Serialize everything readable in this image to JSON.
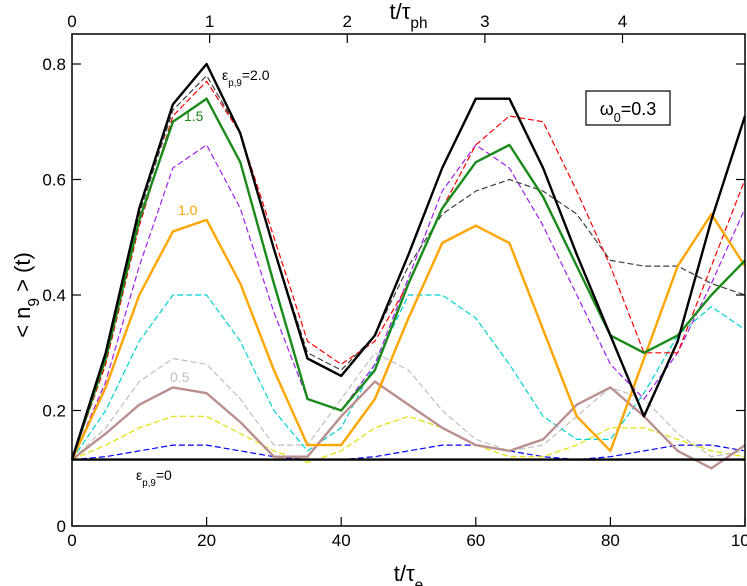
{
  "chart_data": {
    "type": "line",
    "xlabel": [
      "t/τ",
      "e"
    ],
    "x2label": [
      "t/τ",
      "ph"
    ],
    "ylabel": [
      "< n",
      "9",
      " > (t)"
    ],
    "legend_box": [
      "ω",
      "0",
      "=0.3"
    ],
    "annotations": [
      [
        "ε",
        "p,9",
        "=2.0"
      ],
      [
        "1.5"
      ],
      [
        "1.0"
      ],
      [
        "0.5"
      ],
      [
        "ε",
        "p,9",
        "=0"
      ]
    ],
    "x": [
      0,
      5,
      10,
      15,
      20,
      25,
      30,
      35,
      40,
      45,
      50,
      55,
      60,
      65,
      70,
      75,
      80,
      85,
      90,
      95,
      100
    ],
    "xlim": [
      0,
      100
    ],
    "xticks": [
      0,
      20,
      40,
      60,
      80,
      100
    ],
    "x2lim": [
      0,
      4.89
    ],
    "x2ticks": [
      0,
      1,
      2,
      3,
      4
    ],
    "ylim": [
      0,
      0.8
    ],
    "yticks": [
      0,
      0.2,
      0.4,
      0.6,
      0.8
    ],
    "series": [
      {
        "color": "#0000ff",
        "dashed": true,
        "values": [
          0.115,
          0.12,
          0.13,
          0.14,
          0.14,
          0.13,
          0.12,
          0.115,
          0.115,
          0.12,
          0.13,
          0.14,
          0.14,
          0.13,
          0.12,
          0.115,
          0.12,
          0.13,
          0.14,
          0.14,
          0.13
        ]
      },
      {
        "color": "#e0e000",
        "dashed": true,
        "values": [
          0.115,
          0.14,
          0.17,
          0.19,
          0.19,
          0.16,
          0.13,
          0.11,
          0.13,
          0.17,
          0.19,
          0.17,
          0.14,
          0.12,
          0.12,
          0.14,
          0.17,
          0.17,
          0.15,
          0.13,
          0.12
        ]
      },
      {
        "color": "#c0c0c0",
        "dashed": true,
        "values": [
          0.115,
          0.17,
          0.25,
          0.29,
          0.28,
          0.22,
          0.14,
          0.14,
          0.22,
          0.3,
          0.27,
          0.2,
          0.15,
          0.13,
          0.14,
          0.19,
          0.24,
          0.22,
          0.16,
          0.12,
          0.13
        ]
      },
      {
        "color": "#00d0d0",
        "dashed": true,
        "values": [
          0.115,
          0.2,
          0.32,
          0.4,
          0.4,
          0.32,
          0.2,
          0.13,
          0.17,
          0.28,
          0.4,
          0.4,
          0.36,
          0.28,
          0.19,
          0.15,
          0.15,
          0.23,
          0.33,
          0.38,
          0.34
        ]
      },
      {
        "color": "#a020f0",
        "dashed": true,
        "values": [
          0.115,
          0.25,
          0.45,
          0.62,
          0.66,
          0.55,
          0.37,
          0.22,
          0.2,
          0.28,
          0.43,
          0.58,
          0.66,
          0.62,
          0.52,
          0.4,
          0.28,
          0.22,
          0.3,
          0.42,
          0.55
        ]
      },
      {
        "color": "#404040",
        "dashed": true,
        "values": [
          0.115,
          0.3,
          0.54,
          0.72,
          0.78,
          0.68,
          0.48,
          0.3,
          0.27,
          0.33,
          0.45,
          0.54,
          0.58,
          0.6,
          0.58,
          0.54,
          0.46,
          0.45,
          0.45,
          0.42,
          0.4
        ]
      },
      {
        "color": "#ff0000",
        "dashed": true,
        "values": [
          0.115,
          0.28,
          0.52,
          0.71,
          0.77,
          0.68,
          0.5,
          0.32,
          0.28,
          0.32,
          0.42,
          0.55,
          0.66,
          0.71,
          0.7,
          0.58,
          0.45,
          0.3,
          0.3,
          0.45,
          0.6
        ]
      },
      {
        "color": "#bc8f8f",
        "dashed": false,
        "values": [
          0.115,
          0.16,
          0.21,
          0.24,
          0.23,
          0.18,
          0.12,
          0.12,
          0.19,
          0.25,
          0.21,
          0.17,
          0.14,
          0.13,
          0.15,
          0.21,
          0.24,
          0.19,
          0.13,
          0.1,
          0.14
        ]
      },
      {
        "color": "#ffa500",
        "dashed": false,
        "values": [
          0.115,
          0.24,
          0.4,
          0.51,
          0.53,
          0.42,
          0.27,
          0.14,
          0.14,
          0.22,
          0.36,
          0.49,
          0.52,
          0.49,
          0.34,
          0.19,
          0.13,
          0.29,
          0.45,
          0.54,
          0.45
        ]
      },
      {
        "color": "#1a8a1a",
        "dashed": false,
        "values": [
          0.115,
          0.29,
          0.53,
          0.7,
          0.74,
          0.63,
          0.42,
          0.22,
          0.2,
          0.27,
          0.42,
          0.55,
          0.63,
          0.66,
          0.57,
          0.45,
          0.33,
          0.3,
          0.33,
          0.4,
          0.46
        ]
      },
      {
        "color": "#000000",
        "dashed": false,
        "values": [
          0.115,
          0.3,
          0.55,
          0.73,
          0.8,
          0.68,
          0.48,
          0.29,
          0.26,
          0.33,
          0.47,
          0.62,
          0.74,
          0.74,
          0.62,
          0.47,
          0.33,
          0.19,
          0.32,
          0.53,
          0.71
        ]
      },
      {
        "color": "#000000",
        "dashed": false,
        "values": [
          0.115,
          0.115,
          0.115,
          0.115,
          0.115,
          0.115,
          0.115,
          0.115,
          0.115,
          0.115,
          0.115,
          0.115,
          0.115,
          0.115,
          0.115,
          0.115,
          0.115,
          0.115,
          0.115,
          0.115,
          0.115
        ]
      }
    ]
  }
}
